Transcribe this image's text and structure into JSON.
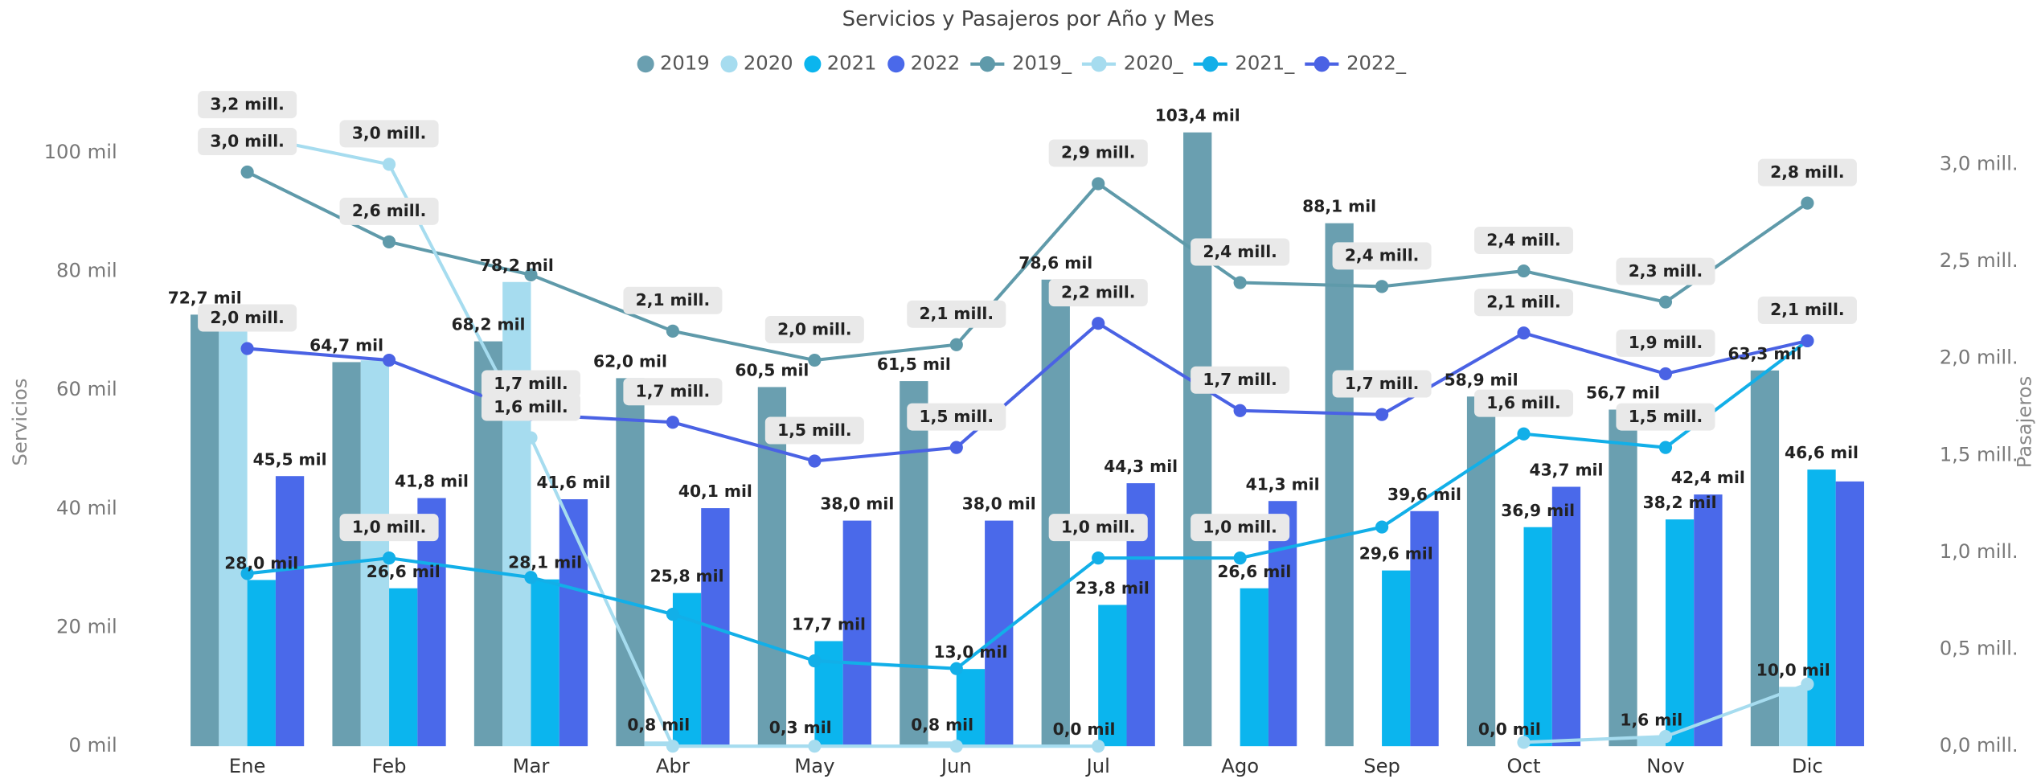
{
  "chart_data": {
    "type": "bar",
    "title": "Servicios y Pasajeros por Año y Mes",
    "y_label": "Servicios",
    "y2_label": "Pasajeros",
    "categories": [
      "Ene",
      "Feb",
      "Mar",
      "Abr",
      "May",
      "Jun",
      "Jul",
      "Ago",
      "Sep",
      "Oct",
      "Nov",
      "Dic"
    ],
    "ylim": [
      0,
      100
    ],
    "yticks": [
      {
        "value": 0,
        "label": "0 mil"
      },
      {
        "value": 20,
        "label": "20 mil"
      },
      {
        "value": 40,
        "label": "40 mil"
      },
      {
        "value": 60,
        "label": "60 mil"
      },
      {
        "value": 80,
        "label": "80 mil"
      },
      {
        "value": 100,
        "label": "100 mil"
      }
    ],
    "y2lim": [
      0,
      3
    ],
    "y2ticks": [
      {
        "value": 0,
        "label": "0,0 mill."
      },
      {
        "value": 0.5,
        "label": "0,5 mill."
      },
      {
        "value": 1,
        "label": "1,0 mill."
      },
      {
        "value": 1.5,
        "label": "1,5 mill."
      },
      {
        "value": 2,
        "label": "2,0 mill."
      },
      {
        "value": 2.5,
        "label": "2,5 mill."
      },
      {
        "value": 3,
        "label": "3,0 mill."
      }
    ],
    "series": [
      {
        "name": "2019",
        "color": "#6a9fb0",
        "values": [
          72.7,
          64.7,
          68.2,
          62.0,
          60.5,
          61.5,
          78.6,
          103.4,
          88.1,
          58.9,
          56.7,
          63.3
        ],
        "value_labels": [
          "72,7 mil",
          "64,7 mil",
          "68,2 mil",
          "62,0 mil",
          "60,5 mil",
          "61,5 mil",
          "78,6 mil",
          "103,4 mil",
          "88,1 mil",
          "58,9 mil",
          "56,7 mil",
          "63,3 mil"
        ]
      },
      {
        "name": "2020",
        "color": "#a6dcef",
        "values": [
          72,
          65,
          78.2,
          0.8,
          0.3,
          0.8,
          0.0,
          null,
          null,
          0.0,
          1.6,
          10.0
        ],
        "value_labels": [
          null,
          null,
          "78,2 mil",
          "0,8 mil",
          "0,3 mil",
          "0,8 mil",
          "0,0 mil",
          null,
          null,
          "0,0 mil",
          "1,6 mil",
          "10,0 mil"
        ]
      },
      {
        "name": "2021",
        "color": "#0bb5ee",
        "values": [
          28.0,
          26.6,
          28.1,
          25.8,
          17.7,
          13.0,
          23.8,
          26.6,
          29.6,
          36.9,
          38.2,
          46.6
        ],
        "value_labels": [
          "28,0 mil",
          "26,6 mil",
          "28,1 mil",
          "25,8 mil",
          "17,7 mil",
          "13,0 mil",
          "23,8 mil",
          "26,6 mil",
          "29,6 mil",
          "36,9 mil",
          "38,2 mil",
          "46,6 mil"
        ]
      },
      {
        "name": "2022",
        "color": "#4a69ea",
        "values": [
          45.5,
          41.8,
          41.6,
          40.1,
          38.0,
          38.0,
          44.3,
          41.3,
          39.6,
          43.7,
          42.4,
          44.6
        ],
        "value_labels": [
          "45,5 mil",
          "41,8 mil",
          "41,6 mil",
          "40,1 mil",
          "38,0 mil",
          "38,0 mil",
          "44,3 mil",
          "41,3 mil",
          "39,6 mil",
          "43,7 mil",
          "42,4 mil",
          null
        ]
      },
      {
        "name": "2019_",
        "type": "line",
        "axis": "y2",
        "color": "#5f9aaa",
        "values": [
          2.96,
          2.6,
          2.43,
          2.14,
          1.99,
          2.07,
          2.9,
          2.39,
          2.37,
          2.45,
          2.29,
          2.8
        ],
        "value_labels": [
          "3,0 mill.",
          "2,6 mill.",
          null,
          "2,1 mill.",
          "2,0 mill.",
          "2,1 mill.",
          "2,9 mill.",
          "2,4 mill.",
          "2,4 mill.",
          "2,4 mill.",
          "2,3 mill.",
          "2,8 mill."
        ]
      },
      {
        "name": "2020_",
        "type": "line",
        "axis": "y2",
        "color": "#a6dcef",
        "values": [
          3.15,
          3.0,
          1.59,
          0.0,
          0.0,
          0.0,
          0.0,
          null,
          null,
          0.02,
          0.05,
          0.32
        ],
        "value_labels": [
          "3,2 mill.",
          "3,0 mill.",
          "1,6 mill.",
          null,
          null,
          null,
          null,
          null,
          null,
          null,
          null,
          null
        ]
      },
      {
        "name": "2021_",
        "type": "line",
        "axis": "y2",
        "color": "#12afe8",
        "values": [
          0.89,
          0.97,
          0.87,
          0.68,
          0.44,
          0.4,
          0.97,
          0.97,
          1.13,
          1.61,
          1.54,
          2.09
        ],
        "value_labels": [
          null,
          "1,0 mill.",
          null,
          null,
          null,
          null,
          "1,0 mill.",
          "1,0 mill.",
          null,
          "1,6 mill.",
          "1,5 mill.",
          "2,1 mill."
        ]
      },
      {
        "name": "2022_",
        "type": "line",
        "axis": "y2",
        "color": "#4a62e4",
        "values": [
          2.05,
          1.99,
          1.71,
          1.67,
          1.47,
          1.54,
          2.18,
          1.73,
          1.71,
          2.13,
          1.92,
          2.09
        ],
        "value_labels": [
          "2,0 mill.",
          null,
          "1,7 mill.",
          "1,7 mill.",
          "1,5 mill.",
          "1,5 mill.",
          "2,2 mill.",
          "1,7 mill.",
          "1,7 mill.",
          "2,1 mill.",
          "1,9 mill.",
          "2,1 mill."
        ]
      }
    ]
  }
}
